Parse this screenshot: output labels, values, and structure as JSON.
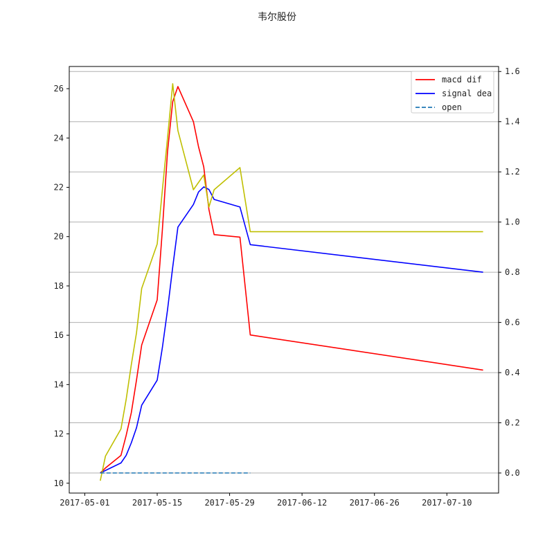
{
  "chart_data": {
    "type": "line",
    "title": "韦尔股份",
    "xlabel": "",
    "ylabel": "",
    "x_tick_labels": [
      "2017-05-01",
      "2017-05-15",
      "2017-05-29",
      "2017-06-12",
      "2017-06-26",
      "2017-07-10"
    ],
    "xlim": [
      "2017-04-28",
      "2017-07-20"
    ],
    "left_axis": {
      "ylim": [
        9.6,
        26.9
      ],
      "ticks": [
        10,
        12,
        14,
        16,
        18,
        20,
        22,
        24,
        26
      ]
    },
    "right_axis": {
      "ylim": [
        -0.08,
        1.62
      ],
      "ticks": [
        "0.0",
        "0.2",
        "0.4",
        "0.6",
        "0.8",
        "1.0",
        "1.2",
        "1.4",
        "1.6"
      ],
      "gridlines": [
        0.0,
        0.2,
        0.4,
        0.6,
        0.8,
        1.0,
        1.2,
        1.4,
        1.6
      ]
    },
    "grid": "horizontal (right axis)",
    "legend_position": "top-right",
    "series": [
      {
        "name": "macd dif",
        "axis": "right",
        "color": "#ff0000",
        "style": "solid",
        "points": [
          [
            "2017-05-04",
            0.0
          ],
          [
            "2017-05-05",
            0.02
          ],
          [
            "2017-05-08",
            0.07
          ],
          [
            "2017-05-09",
            0.15
          ],
          [
            "2017-05-10",
            0.24
          ],
          [
            "2017-05-11",
            0.37
          ],
          [
            "2017-05-12",
            0.51
          ],
          [
            "2017-05-15",
            0.69
          ],
          [
            "2017-05-16",
            0.97
          ],
          [
            "2017-05-17",
            1.28
          ],
          [
            "2017-05-18",
            1.48
          ],
          [
            "2017-05-19",
            1.54
          ],
          [
            "2017-05-22",
            1.4
          ],
          [
            "2017-05-23",
            1.3
          ],
          [
            "2017-05-24",
            1.22
          ],
          [
            "2017-05-25",
            1.05
          ],
          [
            "2017-05-26",
            0.95
          ],
          [
            "2017-05-31",
            0.94
          ],
          [
            "2017-06-02",
            0.55
          ],
          [
            "2017-07-17",
            0.41
          ]
        ]
      },
      {
        "name": "signal dea",
        "axis": "right",
        "color": "#0000ff",
        "style": "solid",
        "points": [
          [
            "2017-05-04",
            0.0
          ],
          [
            "2017-05-05",
            0.01
          ],
          [
            "2017-05-08",
            0.04
          ],
          [
            "2017-05-09",
            0.07
          ],
          [
            "2017-05-10",
            0.12
          ],
          [
            "2017-05-11",
            0.18
          ],
          [
            "2017-05-12",
            0.27
          ],
          [
            "2017-05-15",
            0.37
          ],
          [
            "2017-05-16",
            0.5
          ],
          [
            "2017-05-17",
            0.65
          ],
          [
            "2017-05-18",
            0.82
          ],
          [
            "2017-05-19",
            0.98
          ],
          [
            "2017-05-22",
            1.07
          ],
          [
            "2017-05-23",
            1.12
          ],
          [
            "2017-05-24",
            1.14
          ],
          [
            "2017-05-25",
            1.13
          ],
          [
            "2017-05-26",
            1.09
          ],
          [
            "2017-05-31",
            1.06
          ],
          [
            "2017-06-02",
            0.91
          ],
          [
            "2017-07-17",
            0.8
          ]
        ]
      },
      {
        "name": "",
        "axis": "left",
        "color": "#bfbf00",
        "style": "solid",
        "points": [
          [
            "2017-05-04",
            10.1
          ],
          [
            "2017-05-05",
            11.1
          ],
          [
            "2017-05-08",
            12.2
          ],
          [
            "2017-05-09",
            13.4
          ],
          [
            "2017-05-10",
            14.8
          ],
          [
            "2017-05-11",
            16.1
          ],
          [
            "2017-05-12",
            17.9
          ],
          [
            "2017-05-15",
            19.7
          ],
          [
            "2017-05-16",
            21.9
          ],
          [
            "2017-05-17",
            24.0
          ],
          [
            "2017-05-18",
            26.2
          ],
          [
            "2017-05-19",
            24.3
          ],
          [
            "2017-05-22",
            21.9
          ],
          [
            "2017-05-24",
            22.5
          ],
          [
            "2017-05-25",
            21.2
          ],
          [
            "2017-05-26",
            21.9
          ],
          [
            "2017-05-31",
            22.8
          ],
          [
            "2017-06-02",
            20.2
          ],
          [
            "2017-07-17",
            20.2
          ]
        ]
      },
      {
        "name": "open",
        "axis": "right",
        "color": "#1f77b4",
        "style": "dashed",
        "points": [
          [
            "2017-05-04",
            0.0
          ],
          [
            "2017-06-02",
            0.0
          ]
        ]
      }
    ]
  }
}
